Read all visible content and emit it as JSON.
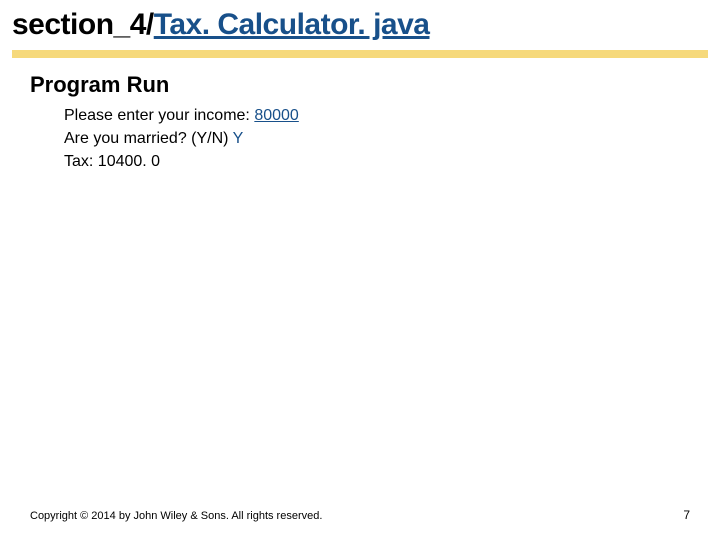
{
  "title": {
    "prefix": "section_4/",
    "link_text": "Tax. Calculator. java"
  },
  "subheading": "Program Run",
  "output": {
    "line1_prompt": "Please enter your income: ",
    "line1_input": "80000",
    "line2_prompt": "Are you married? (Y/N) ",
    "line2_input": "Y",
    "line3": "Tax: 10400. 0"
  },
  "footer": {
    "copyright": "Copyright © 2014 by John Wiley & Sons. All rights reserved.",
    "page_number": "7"
  },
  "colors": {
    "link_color": "#18508a",
    "underline_bar": "#f6d97b",
    "text": "#000000",
    "background": "#ffffff"
  }
}
